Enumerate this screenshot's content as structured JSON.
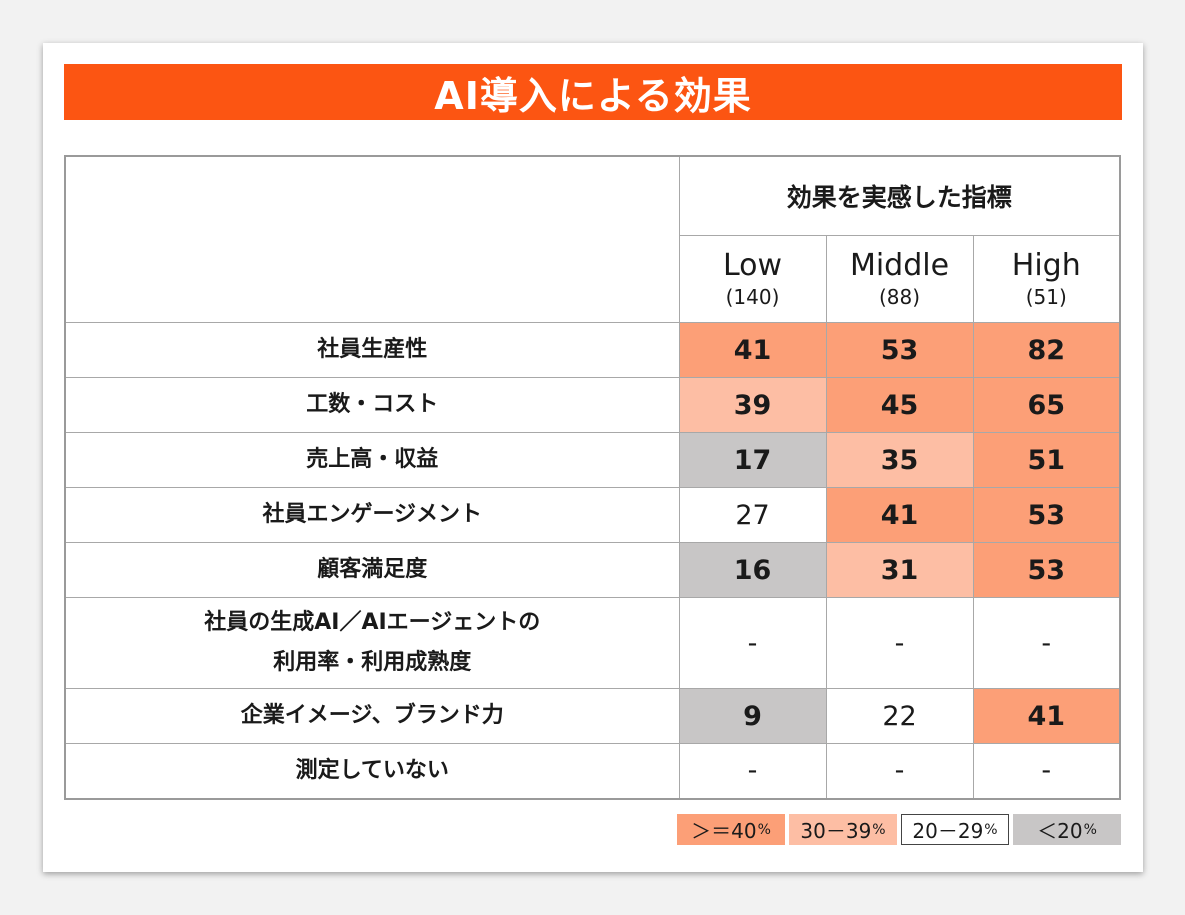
{
  "title": "AI導入による効果",
  "colors": {
    "title_bar": "#fc5512",
    "ge40": "#fc9f77",
    "b30_39": "#fdbea4",
    "b20_29": "#ffffff",
    "lt20": "#c8c6c6"
  },
  "header": {
    "group_label": "効果を実感した指標",
    "columns": [
      {
        "name": "Low",
        "count": "(140)"
      },
      {
        "name": "Middle",
        "count": "(88)"
      },
      {
        "name": "High",
        "count": "(51)"
      }
    ]
  },
  "legend": [
    {
      "label": "＞＝40",
      "unit": "%",
      "level": "ge40"
    },
    {
      "label": "30－39",
      "unit": "%",
      "level": "b30_39"
    },
    {
      "label": "20－29",
      "unit": "%",
      "level": "b20_29"
    },
    {
      "label": "＜20",
      "unit": "%",
      "level": "lt20"
    }
  ],
  "chart_data": {
    "type": "table",
    "title": "AI導入による効果",
    "column_group": "効果を実感した指標",
    "columns": [
      "Low",
      "Middle",
      "High"
    ],
    "column_counts": [
      "(140)",
      "(88)",
      "(51)"
    ],
    "rows": [
      {
        "label": "社員生産性",
        "values": [
          "41",
          "53",
          "82"
        ],
        "levels": [
          "ge40",
          "ge40",
          "ge40"
        ]
      },
      {
        "label": "工数・コスト",
        "values": [
          "39",
          "45",
          "65"
        ],
        "levels": [
          "b30_39",
          "ge40",
          "ge40"
        ]
      },
      {
        "label": "売上高・収益",
        "values": [
          "17",
          "35",
          "51"
        ],
        "levels": [
          "lt20",
          "b30_39",
          "ge40"
        ]
      },
      {
        "label": "社員エンゲージメント",
        "values": [
          "27",
          "41",
          "53"
        ],
        "levels": [
          "b20_29",
          "ge40",
          "ge40"
        ]
      },
      {
        "label": "顧客満足度",
        "values": [
          "16",
          "31",
          "53"
        ],
        "levels": [
          "lt20",
          "b30_39",
          "ge40"
        ]
      },
      {
        "label": "社員の生成AI／AIエージェントの\n利用率・利用成熟度",
        "values": [
          "-",
          "-",
          "-"
        ],
        "levels": [
          "none",
          "none",
          "none"
        ]
      },
      {
        "label": "企業イメージ、ブランド力",
        "values": [
          "9",
          "22",
          "41"
        ],
        "levels": [
          "lt20",
          "b20_29",
          "ge40"
        ]
      },
      {
        "label": "測定していない",
        "values": [
          "-",
          "-",
          "-"
        ],
        "levels": [
          "none",
          "none",
          "none"
        ]
      }
    ]
  }
}
